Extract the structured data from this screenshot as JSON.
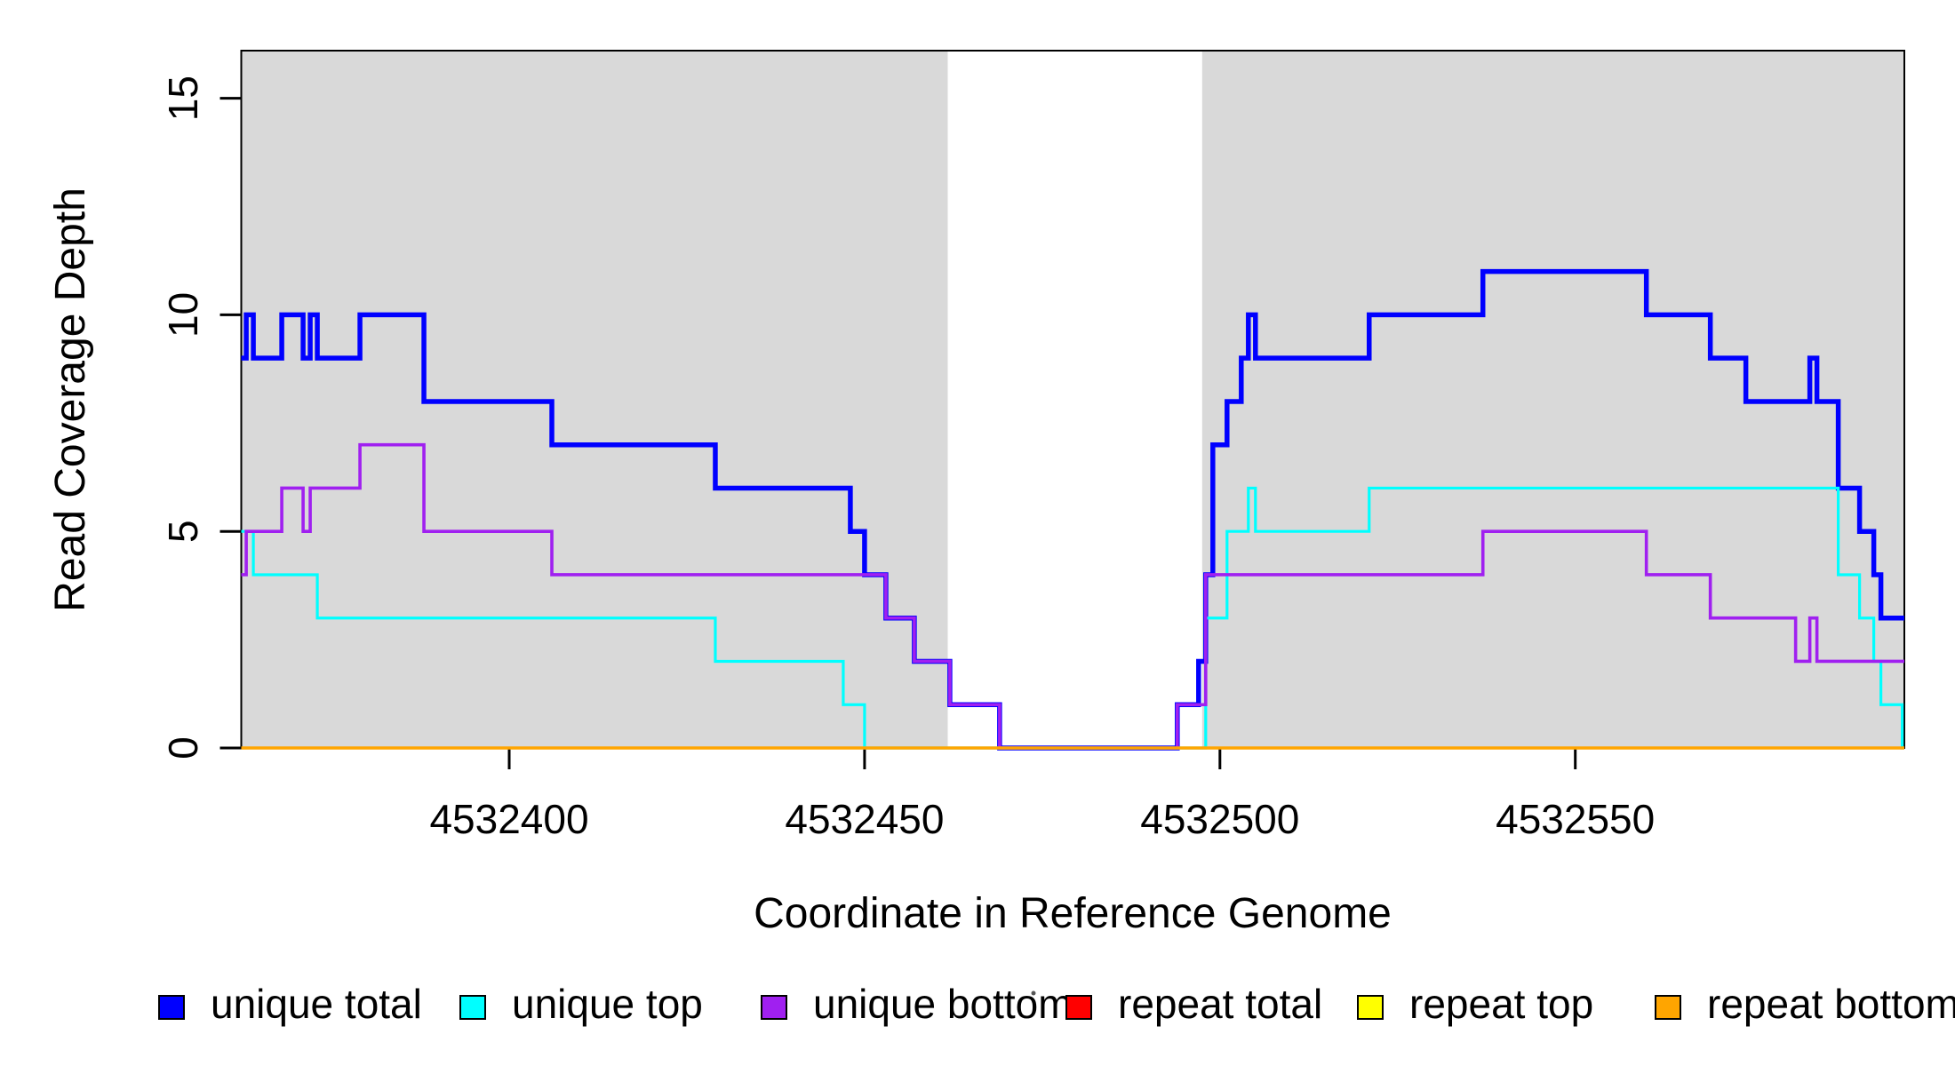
{
  "chart_data": {
    "type": "line",
    "step_mode": "post",
    "title": "",
    "xlabel": "Coordinate in Reference Genome",
    "ylabel": "Read Coverage Depth",
    "xlim": [
      4532362.3,
      4532596.3
    ],
    "ylim": [
      0,
      16.1
    ],
    "x_ticks": [
      4532400,
      4532450,
      4532500,
      4532550
    ],
    "y_ticks": [
      0,
      5,
      10,
      15
    ],
    "grid": false,
    "legend_position": "bottom",
    "shaded_regions": [
      {
        "name": "shaded-region-left",
        "x0": 4532362.3,
        "x1": 4532461.7,
        "color": "#D9D9D9"
      },
      {
        "name": "shaded-region-right",
        "x0": 4532497.5,
        "x1": 4532596.3,
        "color": "#D9D9D9"
      }
    ],
    "series": [
      {
        "name": "unique total",
        "color": "#0000FF",
        "width": 5.5,
        "points": [
          [
            4532362,
            9
          ],
          [
            4532363,
            10
          ],
          [
            4532364,
            9
          ],
          [
            4532368,
            10
          ],
          [
            4532371,
            9
          ],
          [
            4532372,
            10
          ],
          [
            4532373,
            9
          ],
          [
            4532379,
            10
          ],
          [
            4532388,
            8
          ],
          [
            4532406,
            7
          ],
          [
            4532429,
            6
          ],
          [
            4532448,
            5
          ],
          [
            4532450,
            4
          ],
          [
            4532453,
            3
          ],
          [
            4532457,
            2
          ],
          [
            4532462,
            1
          ],
          [
            4532469,
            0
          ],
          [
            4532494,
            1
          ],
          [
            4532497,
            2
          ],
          [
            4532498,
            4
          ],
          [
            4532499,
            7
          ],
          [
            4532501,
            8
          ],
          [
            4532503,
            9
          ],
          [
            4532504,
            10
          ],
          [
            4532505,
            9
          ],
          [
            4532521,
            10
          ],
          [
            4532537,
            11
          ],
          [
            4532560,
            10
          ],
          [
            4532569,
            9
          ],
          [
            4532574,
            8
          ],
          [
            4532583,
            9
          ],
          [
            4532584,
            8
          ],
          [
            4532587,
            6
          ],
          [
            4532590,
            5
          ],
          [
            4532592,
            4
          ],
          [
            4532593,
            3
          ],
          [
            4532596,
            3
          ]
        ]
      },
      {
        "name": "unique top",
        "color": "#00FFFF",
        "width": 3.2,
        "points": [
          [
            4532362,
            5
          ],
          [
            4532364,
            4
          ],
          [
            4532373,
            3
          ],
          [
            4532429,
            2
          ],
          [
            4532447,
            1
          ],
          [
            4532450,
            0
          ],
          [
            4532498,
            3
          ],
          [
            4532501,
            5
          ],
          [
            4532504,
            6
          ],
          [
            4532505,
            5
          ],
          [
            4532521,
            6
          ],
          [
            4532587,
            4
          ],
          [
            4532590,
            3
          ],
          [
            4532592,
            2
          ],
          [
            4532593,
            1
          ],
          [
            4532596,
            0
          ]
        ]
      },
      {
        "name": "unique bottom",
        "color": "#A020F0",
        "width": 3.6,
        "points": [
          [
            4532362,
            4
          ],
          [
            4532363,
            5
          ],
          [
            4532368,
            6
          ],
          [
            4532371,
            5
          ],
          [
            4532372,
            6
          ],
          [
            4532379,
            7
          ],
          [
            4532388,
            5
          ],
          [
            4532406,
            4
          ],
          [
            4532453,
            3
          ],
          [
            4532457,
            2
          ],
          [
            4532462,
            1
          ],
          [
            4532469,
            0
          ],
          [
            4532494,
            1
          ],
          [
            4532498,
            4
          ],
          [
            4532537,
            5
          ],
          [
            4532560,
            4
          ],
          [
            4532569,
            3
          ],
          [
            4532581,
            2
          ],
          [
            4532583,
            3
          ],
          [
            4532584,
            2
          ],
          [
            4532596,
            2
          ]
        ]
      },
      {
        "name": "repeat total",
        "color": "#FF0000",
        "width": 3,
        "points": [
          [
            4532362,
            0
          ],
          [
            4532596,
            0
          ]
        ]
      },
      {
        "name": "repeat top",
        "color": "#FFFF00",
        "width": 3,
        "points": [
          [
            4532362,
            0
          ],
          [
            4532596,
            0
          ]
        ]
      },
      {
        "name": "repeat bottom",
        "color": "#FFA500",
        "width": 3.6,
        "points": [
          [
            4532362,
            0
          ],
          [
            4532596,
            0
          ]
        ]
      }
    ]
  },
  "legend": {
    "items": [
      {
        "label": "unique total",
        "color": "#0000FF"
      },
      {
        "label": "unique top",
        "color": "#00FFFF"
      },
      {
        "label": "unique bottom",
        "color": "#A020F0"
      },
      {
        "label": "repeat total",
        "color": "#FF0000"
      },
      {
        "label": "repeat top",
        "color": "#FFFF00"
      },
      {
        "label": "repeat bottom",
        "color": "#FFA500"
      }
    ]
  }
}
